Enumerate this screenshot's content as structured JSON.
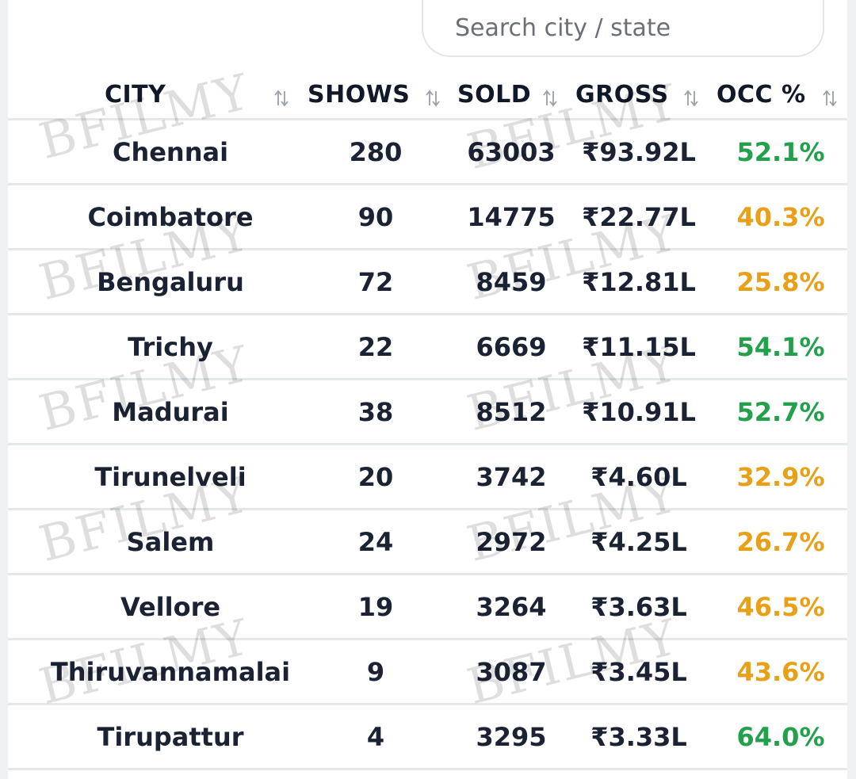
{
  "search": {
    "placeholder": "Search city / state"
  },
  "columns": [
    "CITY",
    "SHOWS",
    "SOLD",
    "GROSS",
    "OCC %"
  ],
  "colors": {
    "good": "#22a04b",
    "warn": "#e9a019",
    "text": "#1a2233"
  },
  "watermark": "BFILMY",
  "rows": [
    {
      "city": "Chennai",
      "shows": "280",
      "sold": "63003",
      "gross": "₹93.92L",
      "occ": "52.1%",
      "status": "good"
    },
    {
      "city": "Coimbatore",
      "shows": "90",
      "sold": "14775",
      "gross": "₹22.77L",
      "occ": "40.3%",
      "status": "warn"
    },
    {
      "city": "Bengaluru",
      "shows": "72",
      "sold": "8459",
      "gross": "₹12.81L",
      "occ": "25.8%",
      "status": "warn"
    },
    {
      "city": "Trichy",
      "shows": "22",
      "sold": "6669",
      "gross": "₹11.15L",
      "occ": "54.1%",
      "status": "good"
    },
    {
      "city": "Madurai",
      "shows": "38",
      "sold": "8512",
      "gross": "₹10.91L",
      "occ": "52.7%",
      "status": "good"
    },
    {
      "city": "Tirunelveli",
      "shows": "20",
      "sold": "3742",
      "gross": "₹4.60L",
      "occ": "32.9%",
      "status": "warn"
    },
    {
      "city": "Salem",
      "shows": "24",
      "sold": "2972",
      "gross": "₹4.25L",
      "occ": "26.7%",
      "status": "warn"
    },
    {
      "city": "Vellore",
      "shows": "19",
      "sold": "3264",
      "gross": "₹3.63L",
      "occ": "46.5%",
      "status": "warn"
    },
    {
      "city": "Thiruvannamalai",
      "shows": "9",
      "sold": "3087",
      "gross": "₹3.45L",
      "occ": "43.6%",
      "status": "warn"
    },
    {
      "city": "Tirupattur",
      "shows": "4",
      "sold": "3295",
      "gross": "₹3.33L",
      "occ": "64.0%",
      "status": "good"
    }
  ]
}
